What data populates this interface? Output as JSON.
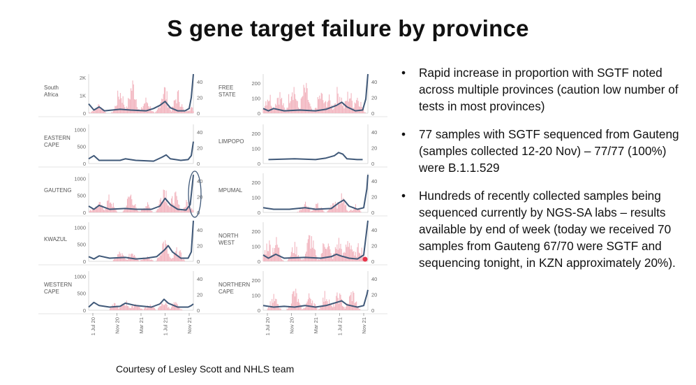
{
  "title": "S gene target failure by province",
  "bullets": [
    "Rapid increase in proportion with SGTF noted across multiple provinces (caution low number of tests in most provinces)",
    "77 samples with SGTF sequenced from Gauteng (samples collected 12-20 Nov) – 77/77 (100%) were B.1.1.529",
    "Hundreds of recently collected samples being sequenced currently by NGS-SA labs – results available by end of week (today we received 70 samples from Gauteng 67/70 were SGTF and sequencing tonight, in KZN approximately 20%)."
  ],
  "bullet_symbol": "•",
  "footer": "Courtesy of Lesley Scott and NHLS team",
  "colors": {
    "bars": "#f2b5bf",
    "line": "#3f5878",
    "highlight_circle": "#3f5878",
    "highlight_dot": "#e8344a"
  },
  "chart_data": {
    "type": "bar",
    "x_ticks": [
      "1 Jul 20",
      "Nov 20",
      "Mar 21",
      "1 Jul 21",
      "Nov 21"
    ],
    "x_range": [
      0,
      1
    ],
    "panels": [
      {
        "name": "South Africa",
        "column": 0,
        "row": 0,
        "left_ticks": [
          "0",
          "1K",
          "2K"
        ],
        "left_max": 2200,
        "right_ticks": [
          "0",
          "20",
          "40"
        ],
        "right_max": 50,
        "bar_peaks": [
          [
            0.06,
            250
          ],
          [
            0.1,
            550
          ],
          [
            0.3,
            1500
          ],
          [
            0.42,
            2000
          ],
          [
            0.55,
            900
          ],
          [
            0.72,
            1700
          ],
          [
            0.85,
            1300
          ],
          [
            0.97,
            400
          ]
        ],
        "line": [
          [
            0,
            12
          ],
          [
            0.05,
            4
          ],
          [
            0.1,
            8
          ],
          [
            0.15,
            3
          ],
          [
            0.3,
            5
          ],
          [
            0.4,
            4
          ],
          [
            0.55,
            3
          ],
          [
            0.62,
            6
          ],
          [
            0.68,
            10
          ],
          [
            0.73,
            15
          ],
          [
            0.78,
            7
          ],
          [
            0.85,
            3
          ],
          [
            0.92,
            3
          ],
          [
            0.96,
            6
          ],
          [
            0.98,
            20
          ],
          [
            1,
            50
          ]
        ]
      },
      {
        "name": "FREE STATE",
        "column": 1,
        "row": 0,
        "left_ticks": [
          "0",
          "100",
          "200"
        ],
        "left_max": 260,
        "right_ticks": [
          "0",
          "20",
          "40"
        ],
        "right_max": 50,
        "bar_peaks": [
          [
            0.05,
            150
          ],
          [
            0.15,
            160
          ],
          [
            0.28,
            240
          ],
          [
            0.4,
            200
          ],
          [
            0.55,
            150
          ],
          [
            0.62,
            120
          ],
          [
            0.72,
            180
          ],
          [
            0.82,
            160
          ],
          [
            0.9,
            140
          ]
        ],
        "line": [
          [
            0,
            6
          ],
          [
            0.05,
            3
          ],
          [
            0.1,
            6
          ],
          [
            0.2,
            3
          ],
          [
            0.35,
            4
          ],
          [
            0.5,
            3
          ],
          [
            0.6,
            5
          ],
          [
            0.7,
            10
          ],
          [
            0.75,
            14
          ],
          [
            0.8,
            8
          ],
          [
            0.88,
            3
          ],
          [
            0.95,
            4
          ],
          [
            0.98,
            18
          ],
          [
            1,
            50
          ]
        ]
      },
      {
        "name": "EASTERN CAPE",
        "column": 0,
        "row": 1,
        "left_ticks": [
          "0",
          "500",
          "1000"
        ],
        "left_max": 1150,
        "right_ticks": [
          "0",
          "20",
          "40"
        ],
        "right_max": 50,
        "bar_peaks": [],
        "line": [
          [
            0,
            6
          ],
          [
            0.05,
            10
          ],
          [
            0.1,
            4
          ],
          [
            0.3,
            4
          ],
          [
            0.35,
            6
          ],
          [
            0.45,
            4
          ],
          [
            0.62,
            3
          ],
          [
            0.7,
            8
          ],
          [
            0.74,
            11
          ],
          [
            0.78,
            6
          ],
          [
            0.88,
            4
          ],
          [
            0.95,
            5
          ],
          [
            0.98,
            10
          ],
          [
            1,
            28
          ]
        ]
      },
      {
        "name": "LIMPOPO",
        "column": 1,
        "row": 1,
        "left_ticks": [
          "0",
          "100",
          "200"
        ],
        "left_max": 260,
        "right_ticks": [
          "0",
          "20",
          "40"
        ],
        "right_max": 50,
        "bar_peaks": [],
        "line": [
          [
            0.05,
            5
          ],
          [
            0.3,
            6
          ],
          [
            0.5,
            5
          ],
          [
            0.6,
            7
          ],
          [
            0.68,
            10
          ],
          [
            0.72,
            14
          ],
          [
            0.76,
            12
          ],
          [
            0.8,
            6
          ],
          [
            0.9,
            5
          ],
          [
            0.95,
            5
          ]
        ]
      },
      {
        "name": "GAUTENG",
        "column": 0,
        "row": 2,
        "left_ticks": [
          "0",
          "500",
          "1000"
        ],
        "left_max": 1150,
        "right_ticks": [
          "0",
          "20",
          "40"
        ],
        "right_max": 50,
        "bar_peaks": [
          [
            0.06,
            200
          ],
          [
            0.1,
            300
          ],
          [
            0.2,
            500
          ],
          [
            0.4,
            650
          ],
          [
            0.55,
            300
          ],
          [
            0.72,
            950
          ],
          [
            0.82,
            600
          ],
          [
            0.95,
            400
          ]
        ],
        "line": [
          [
            0,
            8
          ],
          [
            0.05,
            4
          ],
          [
            0.1,
            9
          ],
          [
            0.2,
            4
          ],
          [
            0.35,
            5
          ],
          [
            0.45,
            4
          ],
          [
            0.6,
            4
          ],
          [
            0.68,
            8
          ],
          [
            0.73,
            18
          ],
          [
            0.78,
            10
          ],
          [
            0.85,
            4
          ],
          [
            0.93,
            3
          ],
          [
            0.97,
            10
          ],
          [
            1,
            48
          ]
        ]
      },
      {
        "name": "MPUMAL",
        "column": 1,
        "row": 2,
        "left_ticks": [
          "0",
          "100",
          "200"
        ],
        "left_max": 260,
        "right_ticks": [
          "0",
          "20",
          "40"
        ],
        "right_max": 50,
        "bar_peaks": [
          [
            0.4,
            80
          ],
          [
            0.52,
            60
          ],
          [
            0.68,
            100
          ],
          [
            0.75,
            120
          ],
          [
            0.88,
            50
          ]
        ],
        "line": [
          [
            0,
            6
          ],
          [
            0.1,
            4
          ],
          [
            0.25,
            4
          ],
          [
            0.4,
            6
          ],
          [
            0.5,
            4
          ],
          [
            0.65,
            5
          ],
          [
            0.72,
            12
          ],
          [
            0.77,
            16
          ],
          [
            0.82,
            8
          ],
          [
            0.9,
            4
          ],
          [
            0.96,
            6
          ],
          [
            0.99,
            30
          ],
          [
            1,
            48
          ]
        ]
      },
      {
        "name": "KWAZUL",
        "column": 0,
        "row": 3,
        "left_ticks": [
          "0",
          "500",
          "1000"
        ],
        "left_max": 1150,
        "right_ticks": [
          "0",
          "20",
          "40"
        ],
        "right_max": 50,
        "bar_peaks": [
          [
            0.3,
            300
          ],
          [
            0.42,
            350
          ],
          [
            0.55,
            200
          ],
          [
            0.72,
            700
          ],
          [
            0.85,
            400
          ]
        ],
        "line": [
          [
            0,
            6
          ],
          [
            0.05,
            3
          ],
          [
            0.1,
            7
          ],
          [
            0.2,
            4
          ],
          [
            0.35,
            5
          ],
          [
            0.45,
            3
          ],
          [
            0.55,
            4
          ],
          [
            0.65,
            6
          ],
          [
            0.72,
            14
          ],
          [
            0.76,
            20
          ],
          [
            0.8,
            12
          ],
          [
            0.88,
            4
          ],
          [
            0.95,
            4
          ],
          [
            0.98,
            12
          ],
          [
            1,
            52
          ]
        ]
      },
      {
        "name": "NORTH WEST",
        "column": 1,
        "row": 3,
        "left_ticks": [
          "0",
          "100",
          "200"
        ],
        "left_max": 260,
        "right_ticks": [
          "0",
          "20",
          "40"
        ],
        "right_max": 50,
        "bar_peaks": [
          [
            0.05,
            150
          ],
          [
            0.12,
            160
          ],
          [
            0.3,
            120
          ],
          [
            0.45,
            200
          ],
          [
            0.6,
            180
          ],
          [
            0.72,
            160
          ],
          [
            0.82,
            180
          ],
          [
            0.92,
            120
          ]
        ],
        "line": [
          [
            0,
            8
          ],
          [
            0.05,
            4
          ],
          [
            0.12,
            9
          ],
          [
            0.2,
            4
          ],
          [
            0.4,
            5
          ],
          [
            0.55,
            4
          ],
          [
            0.65,
            6
          ],
          [
            0.7,
            9
          ],
          [
            0.74,
            7
          ],
          [
            0.82,
            4
          ],
          [
            0.9,
            3
          ],
          [
            0.96,
            8
          ],
          [
            1,
            52
          ]
        ]
      },
      {
        "name": "WESTERN CAPE",
        "column": 0,
        "row": 4,
        "left_ticks": [
          "0",
          "500",
          "1000"
        ],
        "left_max": 1150,
        "right_ticks": [
          "0",
          "20",
          "40"
        ],
        "right_max": 50,
        "bar_peaks": [
          [
            0.25,
            200
          ],
          [
            0.35,
            300
          ],
          [
            0.45,
            250
          ],
          [
            0.58,
            200
          ],
          [
            0.72,
            300
          ],
          [
            0.82,
            250
          ]
        ],
        "line": [
          [
            0,
            4
          ],
          [
            0.05,
            10
          ],
          [
            0.1,
            6
          ],
          [
            0.2,
            4
          ],
          [
            0.3,
            5
          ],
          [
            0.35,
            9
          ],
          [
            0.45,
            6
          ],
          [
            0.6,
            4
          ],
          [
            0.68,
            8
          ],
          [
            0.72,
            14
          ],
          [
            0.76,
            9
          ],
          [
            0.85,
            4
          ],
          [
            0.95,
            4
          ],
          [
            0.98,
            6
          ],
          [
            1,
            8
          ]
        ]
      },
      {
        "name": "NORTHERN CAPE",
        "column": 1,
        "row": 4,
        "left_ticks": [
          "0",
          "100",
          "200"
        ],
        "left_max": 260,
        "right_ticks": [
          "0",
          "20",
          "40"
        ],
        "right_max": 50,
        "bar_peaks": [
          [
            0.1,
            100
          ],
          [
            0.3,
            150
          ],
          [
            0.45,
            120
          ],
          [
            0.6,
            130
          ],
          [
            0.72,
            120
          ],
          [
            0.85,
            140
          ]
        ],
        "line": [
          [
            0,
            6
          ],
          [
            0.1,
            4
          ],
          [
            0.2,
            5
          ],
          [
            0.3,
            4
          ],
          [
            0.4,
            6
          ],
          [
            0.5,
            4
          ],
          [
            0.6,
            6
          ],
          [
            0.7,
            10
          ],
          [
            0.75,
            12
          ],
          [
            0.8,
            7
          ],
          [
            0.9,
            4
          ],
          [
            0.96,
            6
          ],
          [
            0.99,
            20
          ],
          [
            1,
            26
          ]
        ]
      }
    ]
  }
}
